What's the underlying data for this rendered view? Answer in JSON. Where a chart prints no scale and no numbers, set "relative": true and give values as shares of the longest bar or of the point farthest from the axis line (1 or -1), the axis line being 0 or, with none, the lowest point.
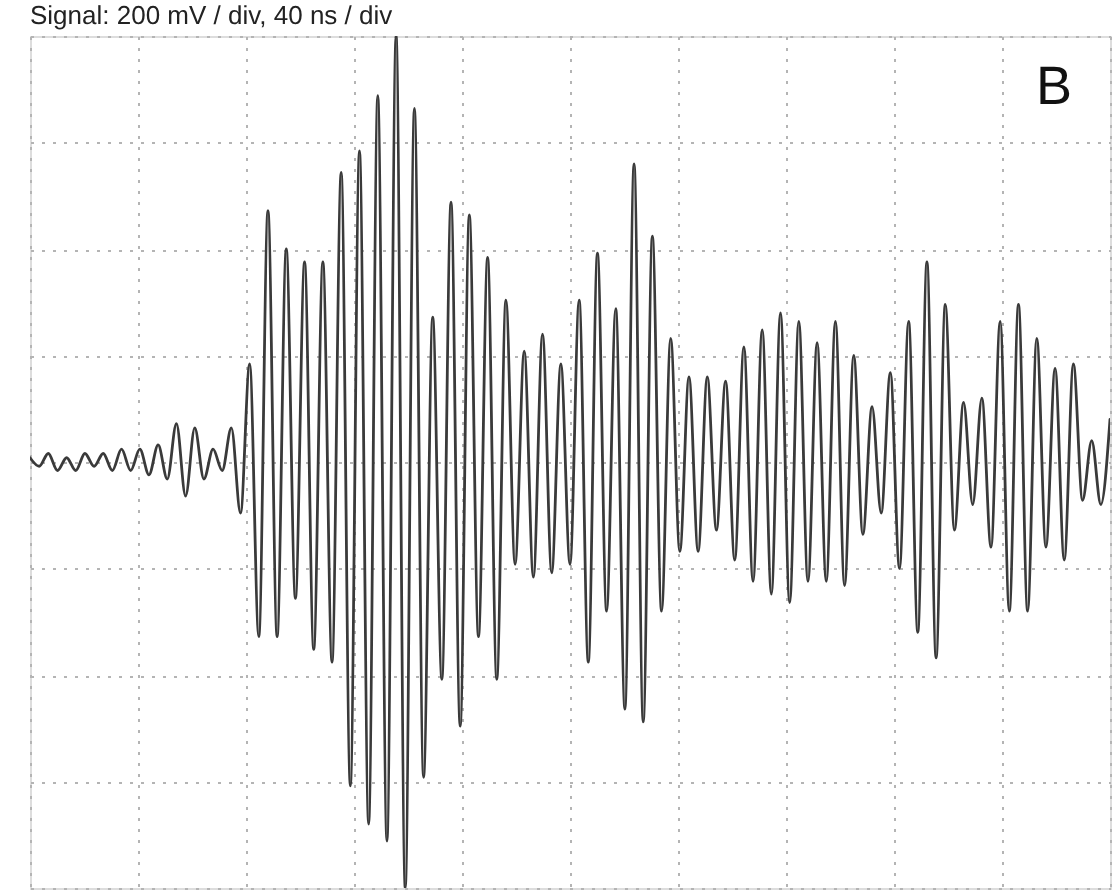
{
  "chart_data": {
    "type": "line",
    "title": "Signal: 200 mV / div, 40 ns / div",
    "categories": [
      null,
      null,
      null,
      null,
      null,
      null,
      null,
      null,
      null,
      null,
      null,
      null,
      null,
      null,
      null,
      null,
      null,
      null,
      null,
      null,
      null,
      null,
      null,
      null,
      null,
      null,
      null,
      null,
      null,
      null,
      null,
      null,
      null,
      null,
      null,
      null,
      null,
      null,
      null,
      null,
      null,
      null,
      null,
      null,
      null,
      null,
      null,
      null,
      null,
      null,
      null,
      null,
      null,
      null,
      null,
      null,
      null,
      null,
      null,
      null,
      null,
      null,
      null,
      null,
      null,
      null,
      null,
      null,
      null,
      null,
      null,
      null,
      null,
      null,
      null,
      null,
      null,
      null,
      null,
      null,
      null,
      null,
      null,
      null,
      null,
      null,
      null,
      null,
      null,
      null,
      null,
      null,
      null,
      null,
      null,
      null,
      null,
      null,
      null,
      null,
      null,
      null,
      null,
      null,
      null,
      null,
      null,
      null,
      null,
      null,
      null,
      null,
      null,
      null,
      null,
      null,
      null,
      null,
      null
    ],
    "series": [
      {
        "color": "#3a3a3a",
        "values": [
          0.01,
          -0.01,
          0.02,
          -0.02,
          0.01,
          -0.02,
          0.02,
          -0.01,
          0.02,
          -0.02,
          0.03,
          -0.02,
          0.03,
          -0.03,
          0.04,
          -0.04,
          0.09,
          -0.08,
          0.08,
          -0.04,
          0.03,
          -0.02,
          0.08,
          -0.12,
          0.23,
          -0.41,
          0.59,
          -0.41,
          0.5,
          -0.32,
          0.47,
          -0.44,
          0.47,
          -0.47,
          0.68,
          -0.76,
          0.73,
          -0.85,
          0.86,
          -0.89,
          1,
          -1,
          0.83,
          -0.74,
          0.34,
          -0.51,
          0.61,
          -0.62,
          0.58,
          -0.41,
          0.48,
          -0.51,
          0.38,
          -0.24,
          0.26,
          -0.27,
          0.3,
          -0.26,
          0.23,
          -0.24,
          0.38,
          -0.47,
          0.49,
          -0.35,
          0.36,
          -0.58,
          0.7,
          -0.61,
          0.53,
          -0.35,
          0.29,
          -0.21,
          0.2,
          -0.21,
          0.2,
          -0.16,
          0.19,
          -0.23,
          0.27,
          -0.28,
          0.31,
          -0.31,
          0.35,
          -0.33,
          0.33,
          -0.28,
          0.28,
          -0.28,
          0.33,
          -0.29,
          0.25,
          -0.17,
          0.13,
          -0.12,
          0.21,
          -0.25,
          0.33,
          -0.4,
          0.47,
          -0.46,
          0.37,
          -0.16,
          0.14,
          -0.1,
          0.15,
          -0.2,
          0.33,
          -0.35,
          0.37,
          -0.35,
          0.29,
          -0.2,
          0.22,
          -0.23,
          0.23,
          -0.09,
          0.05,
          -0.1,
          0.1
        ]
      }
    ],
    "relative": true,
    "grid": true,
    "tick_labels": false,
    "marker": "none",
    "line_style": "solid",
    "annotations": [
      "B"
    ]
  }
}
